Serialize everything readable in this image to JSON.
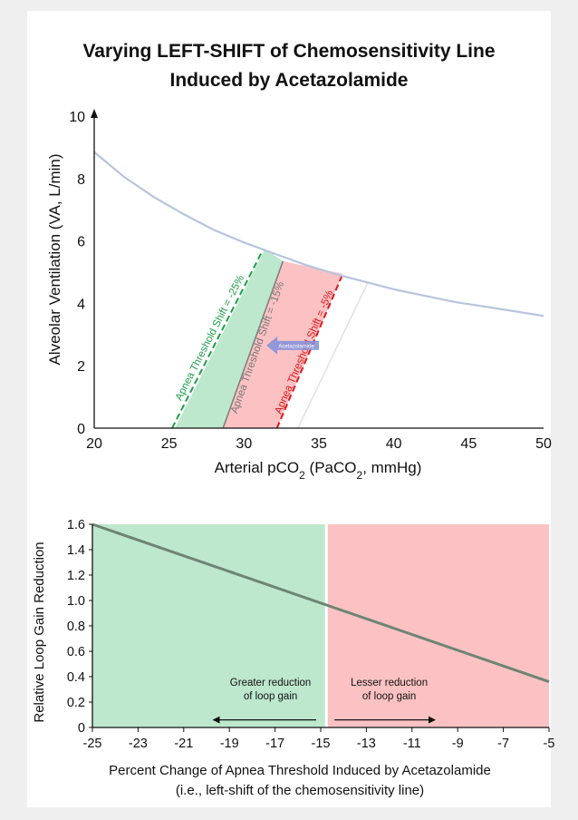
{
  "chart_data": [
    {
      "type": "line",
      "title_lines": [
        "Varying LEFT-SHIFT of Chemosensitivity Line",
        "Induced by Acetazolamide"
      ],
      "xlabel_prefix": "Arterial pCO",
      "xlabel_sub": "2",
      "xlabel_mid": " (PaCO",
      "xlabel_sub2": "2",
      "xlabel_suffix": ", mmHg)",
      "ylabel": "Alveolar Ventilation (VA, L/min)",
      "xlim": [
        20,
        50
      ],
      "ylim": [
        0,
        10
      ],
      "x_ticks": [
        "20",
        "25",
        "30",
        "35",
        "40",
        "45",
        "50"
      ],
      "y_ticks": [
        "0",
        "2",
        "4",
        "6",
        "8",
        "10"
      ],
      "hyperbola": {
        "x": [
          20,
          22,
          24,
          26,
          28,
          30,
          32,
          34,
          36,
          38,
          40,
          42,
          44,
          46,
          48,
          50
        ],
        "y": [
          8.85,
          8.05,
          7.4,
          6.85,
          6.35,
          5.95,
          5.6,
          5.25,
          4.95,
          4.7,
          4.45,
          4.25,
          4.05,
          3.9,
          3.75,
          3.6
        ]
      },
      "regions": [
        {
          "name": "greater-reduction",
          "color": "#bde8cd",
          "polygon": [
            [
              25.4,
              0
            ],
            [
              28.6,
              0
            ],
            [
              32.6,
              5.35
            ],
            [
              31.4,
              5.75
            ]
          ]
        },
        {
          "name": "lesser-reduction",
          "color": "#fcc2c3",
          "polygon": [
            [
              28.6,
              0
            ],
            [
              32.2,
              0
            ],
            [
              36.6,
              4.95
            ],
            [
              32.6,
              5.35
            ]
          ]
        }
      ],
      "lines": [
        {
          "name": "green-dashed",
          "color": "#1e9d49",
          "dash": true,
          "x": [
            25.2,
            31.3
          ],
          "y": [
            0,
            5.75
          ]
        },
        {
          "name": "grey-solid",
          "color": "#808080",
          "dash": false,
          "x": [
            28.6,
            32.6
          ],
          "y": [
            0,
            5.35
          ]
        },
        {
          "name": "red-dashed",
          "color": "#e0161c",
          "dash": true,
          "x": [
            32.2,
            36.6
          ],
          "y": [
            0,
            4.95
          ]
        },
        {
          "name": "baseline-faint",
          "color": "#e2e2e2",
          "dash": false,
          "x": [
            33.6,
            38.3
          ],
          "y": [
            0,
            4.7
          ]
        }
      ],
      "annotations": [
        {
          "text": "Apnea Threshold Shift = -25%",
          "color": "#1e9d49",
          "x": 27.9,
          "y": 2.85
        },
        {
          "text": "Apnea Threshold Shift = -15%",
          "color": "#777777",
          "x": 31.1,
          "y": 2.55
        },
        {
          "text": "Apnea Threshold Shift = -5%",
          "color": "#e0161c",
          "x": 34.2,
          "y": 2.4
        }
      ],
      "arrow": {
        "label": "Acetazolamide",
        "color": "#7f8fdc",
        "x_from": 35.0,
        "x_to": 31.5,
        "y": 2.65
      }
    },
    {
      "type": "line",
      "xlabel": "Percent Change of Apnea Threshold Induced by Acetazolamide",
      "xlabel2": "(i.e., left-shift of the chemosensitivity line)",
      "ylabel": "Relative Loop Gain Reduction",
      "xlim": [
        -25,
        -5
      ],
      "ylim": [
        0,
        1.6
      ],
      "x_ticks": [
        "-25",
        "-23",
        "-21",
        "-19",
        "-17",
        "-15",
        "-13",
        "-11",
        "-9",
        "-7",
        "-5"
      ],
      "y_ticks": [
        "0",
        "0.2",
        "0.4",
        "0.6",
        "0.8",
        "1.0",
        "1.2",
        "1.4",
        "1.6"
      ],
      "regions": [
        {
          "name": "greater",
          "color": "#bde8cd",
          "x": [
            -25,
            -14.75
          ]
        },
        {
          "name": "lesser",
          "color": "#fcc2c3",
          "x": [
            -14.75,
            -5
          ]
        }
      ],
      "series": [
        {
          "x": [
            -25,
            -5
          ],
          "y": [
            1.6,
            0.36
          ],
          "color": "#6e8474"
        }
      ],
      "notes": [
        {
          "lines": [
            "Greater reduction",
            "of loop gain"
          ],
          "x": -17.2,
          "y": 0.33,
          "arrow_dir": "left",
          "arrow_from": -15.2,
          "arrow_to": -19.7,
          "arrow_y": 0.06
        },
        {
          "lines": [
            "Lesser reduction",
            "of loop gain"
          ],
          "x": -12.0,
          "y": 0.33,
          "arrow_dir": "right",
          "arrow_from": -14.4,
          "arrow_to": -10.0,
          "arrow_y": 0.06
        }
      ]
    }
  ]
}
